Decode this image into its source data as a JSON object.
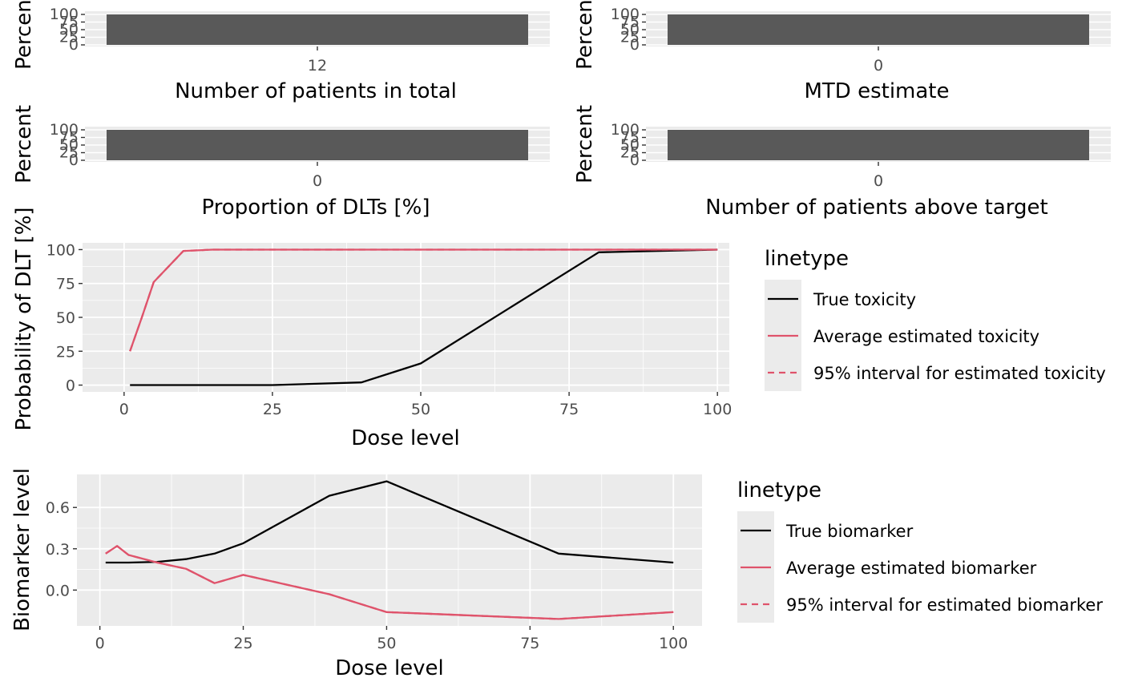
{
  "colors": {
    "panel_bg": "#EBEBEB",
    "grid": "#FFFFFF",
    "bar": "#595959",
    "true_line": "#000000",
    "estimate_line": "#DF536B"
  },
  "chart_data": [
    {
      "type": "bar",
      "xlabel": "Number of patients in total",
      "ylabel": "Percent",
      "categories": [
        "12"
      ],
      "values": [
        100
      ],
      "yticks": [
        "0",
        "25",
        "50",
        "75",
        "100"
      ],
      "ylim": [
        0,
        100
      ]
    },
    {
      "type": "bar",
      "xlabel": "MTD estimate",
      "ylabel": "Percent",
      "categories": [
        "0"
      ],
      "values": [
        100
      ],
      "yticks": [
        "0",
        "25",
        "50",
        "75",
        "100"
      ],
      "ylim": [
        0,
        100
      ]
    },
    {
      "type": "bar",
      "xlabel": "Proportion of DLTs [%]",
      "ylabel": "Percent",
      "categories": [
        "0"
      ],
      "values": [
        100
      ],
      "yticks": [
        "0",
        "25",
        "50",
        "75",
        "100"
      ],
      "ylim": [
        0,
        100
      ]
    },
    {
      "type": "bar",
      "xlabel": "Number of patients above target",
      "ylabel": "Percent",
      "categories": [
        "0"
      ],
      "values": [
        100
      ],
      "yticks": [
        "0",
        "25",
        "50",
        "75",
        "100"
      ],
      "ylim": [
        0,
        100
      ]
    },
    {
      "type": "line",
      "xlabel": "Dose level",
      "ylabel": "Probability of DLT [%]",
      "xticks": [
        "0",
        "25",
        "50",
        "75",
        "100"
      ],
      "yticks": [
        "0",
        "25",
        "50",
        "75",
        "100"
      ],
      "xlim": [
        -7,
        102
      ],
      "ylim": [
        -5,
        105
      ],
      "grid": true,
      "legend": {
        "title": "linetype",
        "position": "right",
        "entries": [
          "True toxicity",
          "Average estimated toxicity",
          "95% interval for estimated toxicity"
        ]
      },
      "series": [
        {
          "name": "True toxicity",
          "x": [
            1,
            5,
            10,
            15,
            20,
            25,
            40,
            50,
            80,
            100
          ],
          "y": [
            0,
            0,
            0,
            0,
            0,
            0,
            2,
            16,
            98,
            100
          ]
        },
        {
          "name": "Average estimated toxicity",
          "x": [
            1,
            3,
            5,
            10,
            15,
            20,
            25,
            40,
            50,
            80,
            100
          ],
          "y": [
            25,
            50,
            76,
            99,
            100,
            100,
            100,
            100,
            100,
            100,
            100
          ]
        },
        {
          "name": "95% interval for estimated toxicity",
          "x": [
            1,
            3,
            5,
            10,
            15,
            20,
            25,
            40,
            50,
            80,
            100
          ],
          "y": [
            25,
            50,
            76,
            99,
            100,
            100,
            100,
            100,
            100,
            100,
            100
          ]
        }
      ]
    },
    {
      "type": "line",
      "xlabel": "Dose level",
      "ylabel": "Biomarker level",
      "xticks": [
        "0",
        "25",
        "50",
        "75",
        "100"
      ],
      "yticks": [
        "0.0",
        "0.3",
        "0.6"
      ],
      "xlim": [
        -4,
        105
      ],
      "ylim": [
        -0.26,
        0.84
      ],
      "grid": true,
      "legend": {
        "title": "linetype",
        "position": "right",
        "entries": [
          "True biomarker",
          "Average estimated biomarker",
          "95% interval for estimated biomarker"
        ]
      },
      "series": [
        {
          "name": "True biomarker",
          "x": [
            1,
            5,
            10,
            15,
            20,
            25,
            40,
            50,
            80,
            100
          ],
          "y": [
            0.2,
            0.2,
            0.205,
            0.225,
            0.265,
            0.34,
            0.685,
            0.79,
            0.265,
            0.2
          ]
        },
        {
          "name": "Average estimated biomarker",
          "x": [
            1,
            3,
            5,
            10,
            15,
            20,
            25,
            40,
            50,
            80,
            100
          ],
          "y": [
            0.265,
            0.32,
            0.255,
            0.2,
            0.155,
            0.05,
            0.11,
            -0.03,
            -0.16,
            -0.21,
            -0.16
          ]
        },
        {
          "name": "95% interval for estimated biomarker",
          "x": [
            1,
            3,
            5,
            10,
            15,
            20,
            25,
            40,
            50,
            80,
            100
          ],
          "y": [
            0.265,
            0.32,
            0.255,
            0.2,
            0.155,
            0.05,
            0.11,
            -0.03,
            -0.16,
            -0.21,
            -0.16
          ]
        }
      ]
    }
  ]
}
